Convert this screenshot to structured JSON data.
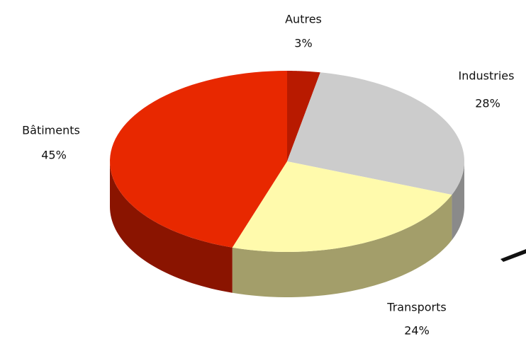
{
  "chart_data": {
    "type": "pie3d",
    "categories": [
      "Autres",
      "Industries",
      "Transports",
      "Bâtiments"
    ],
    "values": [
      3,
      28,
      24,
      45
    ],
    "value_labels": [
      "3%",
      "28%",
      "24%",
      "45%"
    ],
    "colors": [
      "#b81a00",
      "#cccccc",
      "#fffaac",
      "#e82800"
    ],
    "side_colors": [
      "#7a1000",
      "#8a8a8a",
      "#a39e6a",
      "#8a1400"
    ]
  }
}
